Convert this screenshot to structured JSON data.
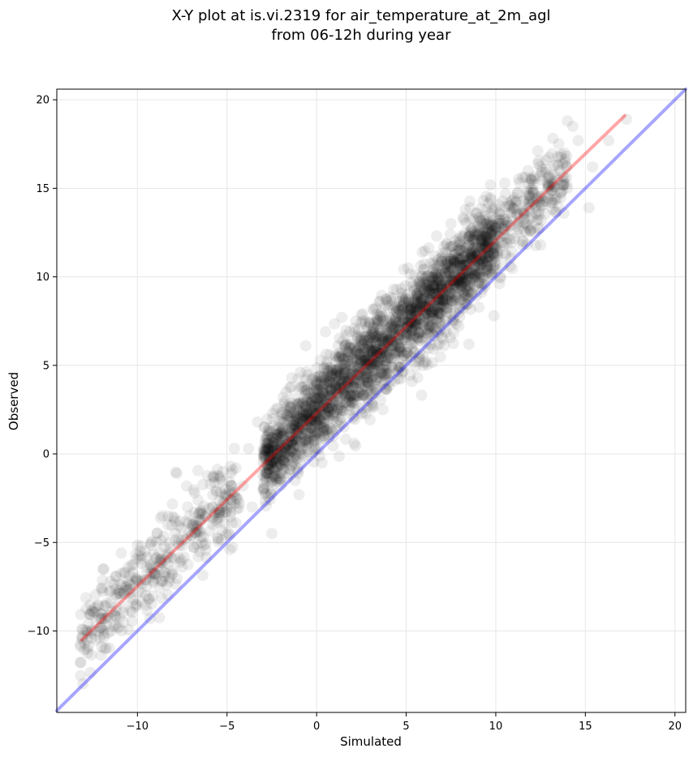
{
  "chart_data": {
    "type": "scatter",
    "title_lines": [
      "X-Y plot at is.vi.2319 for air_temperature_at_2m_agl",
      "from 06-12h during year"
    ],
    "xlabel": "Simulated",
    "ylabel": "Observed",
    "xlim": [
      -14.5,
      20.6
    ],
    "ylim": [
      -14.6,
      20.6
    ],
    "x_ticks": [
      -10,
      -5,
      0,
      5,
      10,
      15,
      20
    ],
    "y_ticks": [
      -10,
      -5,
      0,
      5,
      10,
      15,
      20
    ],
    "x_tick_labels": [
      "−10",
      "−5",
      "0",
      "5",
      "10",
      "15",
      "20"
    ],
    "y_tick_labels": [
      "−10",
      "−5",
      "0",
      "5",
      "10",
      "15",
      "20"
    ],
    "grid": true,
    "reference_lines": [
      {
        "kind": "identity",
        "color": "#0000ff",
        "alpha": 0.35,
        "points": [
          [
            -14.5,
            -14.5
          ],
          [
            20.6,
            20.6
          ]
        ]
      },
      {
        "kind": "fit",
        "color": "#ff0000",
        "alpha": 0.35,
        "points": [
          [
            -13.1,
            -10.5
          ],
          [
            17.2,
            19.1
          ]
        ]
      }
    ],
    "point_color": "#000000",
    "point_alpha": 0.07,
    "point_cloud": {
      "description_free": true,
      "x_range": [
        -13.2,
        17.4
      ],
      "slope": 0.98,
      "intercept": 2.4,
      "sample_points": [
        [
          -13.1,
          -10.3
        ],
        [
          -12.8,
          -10.0
        ],
        [
          -12.5,
          -8.9
        ],
        [
          -12.3,
          -10.5
        ],
        [
          -11.8,
          -8.6
        ],
        [
          -11.9,
          -6.5
        ],
        [
          -11.5,
          -7.2
        ],
        [
          -11.2,
          -6.9
        ],
        [
          -10.8,
          -7.8
        ],
        [
          -10.5,
          -6.4
        ],
        [
          -10.9,
          -5.6
        ],
        [
          -10.1,
          -8.5
        ],
        [
          -9.8,
          -5.2
        ],
        [
          -9.5,
          -6.8
        ],
        [
          -9.3,
          -9.3
        ],
        [
          -8.9,
          -4.5
        ],
        [
          -8.7,
          -6.0
        ],
        [
          -8.3,
          -4.0
        ],
        [
          -8.2,
          -7.0
        ],
        [
          -7.9,
          -3.8
        ],
        [
          -7.8,
          -1.1
        ],
        [
          -7.5,
          -5.2
        ],
        [
          -7.2,
          -3.0
        ],
        [
          -6.8,
          -2.2
        ],
        [
          -6.6,
          -5.8
        ],
        [
          -6.2,
          -3.5
        ],
        [
          -5.8,
          -1.3
        ],
        [
          -5.5,
          -4.8
        ],
        [
          -5.1,
          -2.0
        ],
        [
          -4.8,
          -0.7
        ],
        [
          -4.5,
          -3.9
        ],
        [
          -4.1,
          -1.8
        ],
        [
          -3.8,
          0.3
        ],
        [
          -3.6,
          -3.0
        ],
        [
          -3.3,
          1.8
        ],
        [
          -3.0,
          -1.2
        ],
        [
          -2.7,
          0.6
        ],
        [
          -2.5,
          -4.5
        ],
        [
          -2.3,
          2.5
        ],
        [
          -2.0,
          -0.6
        ],
        [
          -1.7,
          3.5
        ],
        [
          -1.5,
          1.2
        ],
        [
          -1.2,
          -1.5
        ],
        [
          -1.0,
          2.8
        ],
        [
          -0.6,
          4.2
        ],
        [
          -0.4,
          0.9
        ],
        [
          -0.1,
          2.3
        ],
        [
          0.2,
          5.3
        ],
        [
          0.3,
          -0.5
        ],
        [
          0.5,
          6.9
        ],
        [
          0.8,
          3.6
        ],
        [
          1.1,
          1.4
        ],
        [
          1.3,
          4.8
        ],
        [
          1.6,
          2.9
        ],
        [
          1.9,
          6.2
        ],
        [
          2.1,
          0.6
        ],
        [
          2.4,
          4.1
        ],
        [
          2.7,
          7.5
        ],
        [
          2.9,
          3.0
        ],
        [
          3.2,
          5.8
        ],
        [
          3.5,
          8.6
        ],
        [
          3.7,
          2.5
        ],
        [
          4.0,
          6.4
        ],
        [
          4.3,
          9.3
        ],
        [
          4.5,
          4.7
        ],
        [
          4.8,
          7.9
        ],
        [
          5.1,
          10.5
        ],
        [
          5.3,
          5.5
        ],
        [
          5.6,
          8.3
        ],
        [
          5.9,
          11.4
        ],
        [
          6.1,
          6.2
        ],
        [
          6.4,
          9.5
        ],
        [
          6.7,
          12.3
        ],
        [
          6.9,
          7.0
        ],
        [
          7.2,
          10.2
        ],
        [
          7.5,
          13.0
        ],
        [
          7.7,
          8.0
        ],
        [
          8.0,
          11.0
        ],
        [
          8.3,
          13.8
        ],
        [
          8.5,
          6.2
        ],
        [
          8.8,
          12.1
        ],
        [
          9.0,
          9.5
        ],
        [
          9.3,
          14.3
        ],
        [
          9.6,
          11.3
        ],
        [
          9.9,
          7.8
        ],
        [
          10.2,
          13.2
        ],
        [
          10.5,
          15.3
        ],
        [
          10.8,
          10.6
        ],
        [
          11.1,
          14.2
        ],
        [
          11.5,
          12.0
        ],
        [
          11.8,
          16.0
        ],
        [
          12.1,
          14.8
        ],
        [
          12.5,
          11.8
        ],
        [
          12.8,
          16.6
        ],
        [
          13.1,
          14.2
        ],
        [
          13.5,
          16.3
        ],
        [
          13.8,
          13.6
        ],
        [
          14.0,
          18.8
        ],
        [
          14.3,
          18.5
        ],
        [
          14.6,
          17.7
        ],
        [
          15.2,
          13.9
        ],
        [
          15.4,
          16.2
        ],
        [
          16.3,
          17.7
        ],
        [
          17.3,
          18.9
        ]
      ]
    }
  }
}
